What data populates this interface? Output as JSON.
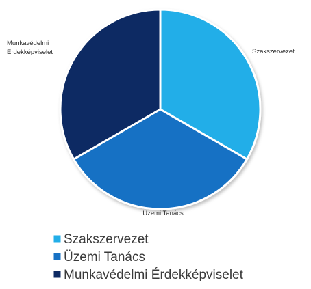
{
  "chart_data": {
    "type": "pie",
    "title": "",
    "categories": [
      "Szakszervezet",
      "Üzemi Tanács",
      "Munkavédelmi Érdekképviselet"
    ],
    "values": [
      33.3,
      33.3,
      33.3
    ],
    "colors": [
      "#22aee8",
      "#1771c4",
      "#0d2a63"
    ],
    "slice_labels": [
      "Szakszervezet",
      "Üzemi Tanács",
      [
        "Munkavédelmi",
        "Érdekképviselet"
      ]
    ],
    "legend": {
      "position": "bottom-left",
      "entries": [
        "Szakszervezet",
        "Üzemi Tanács",
        "Munkavédelmi Érdekképviselet"
      ]
    },
    "start_angle_deg": 0,
    "direction": "clockwise"
  }
}
